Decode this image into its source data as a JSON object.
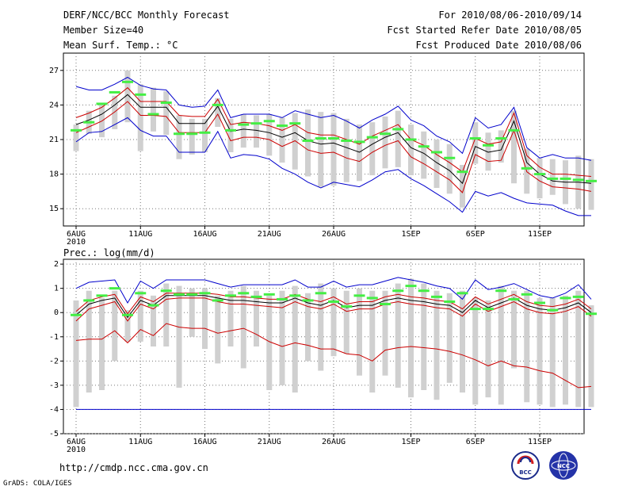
{
  "header": {
    "title": "DERF/NCC/BCC Monthly Forecast",
    "member_size": "Member Size=40",
    "variable": "Mean Surf. Temp.: °C",
    "period": "For 2010/08/06-2010/09/14",
    "fcst_started": "Fcst Started Refer Date 2010/08/05",
    "fcst_produced": "Fcst Produced Date 2010/08/06"
  },
  "footer": {
    "url": "http://cmdp.ncc.cma.gov.cn",
    "credit": "GrADS: COLA/IGES"
  },
  "logos": {
    "bcc": "BCC",
    "ncc": "NCC"
  },
  "colors": {
    "box": "#d0d0d0",
    "obs": "#44ee44",
    "mean": "#000000",
    "band": "#cc0000",
    "envelope": "#0000cc",
    "grid": "#777777"
  },
  "chart_data": [
    {
      "type": "line",
      "name": "temperature",
      "title": "Mean Surf. Temp.: °C",
      "x_tick_labels": [
        "6AUG",
        "11AUG",
        "16AUG",
        "21AUG",
        "26AUG",
        "1SEP",
        "6SEP",
        "11SEP"
      ],
      "x_tick_days": [
        0,
        5,
        10,
        15,
        20,
        26,
        31,
        36
      ],
      "year_label": "2010",
      "ylim": [
        13.5,
        28.5
      ],
      "y_ticks": [
        15,
        18,
        21,
        24,
        27
      ],
      "series": [
        {
          "name": "ensemble_mean",
          "values": [
            22.3,
            22.7,
            23.2,
            24.0,
            24.9,
            23.8,
            23.8,
            23.8,
            22.4,
            22.4,
            22.4,
            23.9,
            21.7,
            21.9,
            21.8,
            21.6,
            21.2,
            21.6,
            20.9,
            20.6,
            20.7,
            20.3,
            19.9,
            20.6,
            21.2,
            21.6,
            20.3,
            19.8,
            19.0,
            18.3,
            17.2,
            20.4,
            19.9,
            20.1,
            22.6,
            19.0,
            18.0,
            17.4,
            17.3,
            17.3,
            17.2
          ]
        },
        {
          "name": "upper_band",
          "values": [
            22.9,
            23.3,
            23.8,
            24.6,
            25.5,
            24.3,
            24.3,
            24.3,
            23.1,
            23.0,
            23.0,
            24.5,
            22.3,
            22.5,
            22.4,
            22.2,
            21.8,
            22.3,
            21.6,
            21.4,
            21.4,
            21.0,
            20.6,
            21.3,
            21.8,
            22.3,
            21.0,
            20.5,
            19.7,
            19.0,
            18.2,
            21.1,
            20.6,
            20.8,
            23.3,
            19.6,
            18.6,
            18.0,
            18.0,
            17.9,
            17.8
          ]
        },
        {
          "name": "lower_band",
          "values": [
            21.6,
            22.1,
            22.6,
            23.4,
            24.3,
            23.1,
            23.1,
            23.0,
            21.6,
            21.6,
            21.6,
            23.2,
            20.9,
            21.2,
            21.2,
            21.0,
            20.4,
            20.9,
            20.1,
            19.8,
            19.9,
            19.4,
            19.1,
            19.9,
            20.5,
            20.9,
            19.5,
            18.9,
            18.2,
            17.5,
            16.4,
            19.7,
            19.1,
            19.2,
            21.8,
            18.2,
            17.4,
            16.9,
            16.8,
            16.7,
            16.5
          ]
        },
        {
          "name": "ensemble_max",
          "values": [
            25.6,
            25.3,
            25.3,
            25.8,
            26.4,
            25.7,
            25.4,
            25.3,
            24.0,
            23.8,
            23.9,
            25.3,
            22.9,
            23.2,
            23.2,
            23.2,
            22.9,
            23.5,
            23.2,
            22.9,
            23.1,
            22.6,
            22.0,
            22.7,
            23.2,
            23.9,
            22.7,
            22.2,
            21.3,
            20.8,
            19.8,
            22.9,
            22.0,
            22.3,
            23.8,
            20.3,
            19.4,
            19.7,
            19.4,
            19.4,
            19.2
          ]
        },
        {
          "name": "ensemble_min",
          "values": [
            20.8,
            21.6,
            21.7,
            22.3,
            22.9,
            21.8,
            21.3,
            21.3,
            19.9,
            19.9,
            19.9,
            21.7,
            19.4,
            19.7,
            19.6,
            19.3,
            18.5,
            18.0,
            17.3,
            16.8,
            17.3,
            17.1,
            16.9,
            17.5,
            18.2,
            18.4,
            17.6,
            17.0,
            16.3,
            15.6,
            14.7,
            16.5,
            16.1,
            16.4,
            15.9,
            15.5,
            15.4,
            15.3,
            14.8,
            14.4,
            14.4
          ]
        },
        {
          "name": "observed_marker",
          "values": [
            21.8,
            22.5,
            24.1,
            25.1,
            26.0,
            24.9,
            23.2,
            24.2,
            21.5,
            21.5,
            21.6,
            24.0,
            21.8,
            22.3,
            22.4,
            22.6,
            22.2,
            22.4,
            20.9,
            21.1,
            21.1,
            20.9,
            20.8,
            21.2,
            21.5,
            21.9,
            21.0,
            20.4,
            19.9,
            19.4,
            18.2,
            21.1,
            20.5,
            21.1,
            21.8,
            18.5,
            18.0,
            17.6,
            17.6,
            17.5,
            17.4
          ]
        },
        {
          "name": "box_top",
          "values": [
            22.3,
            23.5,
            24.0,
            24.8,
            27.0,
            25.8,
            25.5,
            25.2,
            23.1,
            22.8,
            22.8,
            24.6,
            22.8,
            23.2,
            23.1,
            23.2,
            22.9,
            23.3,
            23.6,
            23.4,
            23.3,
            22.8,
            22.3,
            22.5,
            23.0,
            23.5,
            22.3,
            21.7,
            21.0,
            20.6,
            18.8,
            22.5,
            21.6,
            21.8,
            23.5,
            20.2,
            19.4,
            19.3,
            19.2,
            19.6,
            19.3
          ]
        },
        {
          "name": "box_bottom",
          "values": [
            20.0,
            21.5,
            21.2,
            21.9,
            22.5,
            20.0,
            21.7,
            21.4,
            19.3,
            19.7,
            19.9,
            22.1,
            19.9,
            20.3,
            20.3,
            19.6,
            19.0,
            18.4,
            17.8,
            16.9,
            17.0,
            17.3,
            17.4,
            17.9,
            18.5,
            18.6,
            17.9,
            17.6,
            16.8,
            16.3,
            15.1,
            18.9,
            18.3,
            19.0,
            17.2,
            16.3,
            15.9,
            16.2,
            15.4,
            15.0,
            14.9
          ]
        }
      ]
    },
    {
      "type": "line",
      "name": "precipitation",
      "title": "Prec.: log(mm/d)",
      "x_tick_labels": [
        "6AUG",
        "11AUG",
        "16AUG",
        "21AUG",
        "26AUG",
        "1SEP",
        "6SEP",
        "11SEP"
      ],
      "x_tick_days": [
        0,
        5,
        10,
        15,
        20,
        26,
        31,
        36
      ],
      "year_label": "2010",
      "ylim": [
        -5,
        2.2
      ],
      "y_ticks": [
        -5,
        -4,
        -3,
        -2,
        -1,
        0,
        1,
        2
      ],
      "series": [
        {
          "name": "ensemble_mean",
          "values": [
            -0.1,
            0.35,
            0.5,
            0.6,
            -0.2,
            0.5,
            0.3,
            0.7,
            0.7,
            0.7,
            0.7,
            0.6,
            0.5,
            0.5,
            0.45,
            0.4,
            0.4,
            0.6,
            0.4,
            0.3,
            0.5,
            0.2,
            0.3,
            0.3,
            0.5,
            0.6,
            0.5,
            0.45,
            0.35,
            0.3,
            0.0,
            0.5,
            0.2,
            0.4,
            0.6,
            0.3,
            0.15,
            0.1,
            0.2,
            0.4,
            0.0
          ]
        },
        {
          "name": "upper_band",
          "values": [
            0.05,
            0.5,
            0.65,
            0.75,
            -0.05,
            0.65,
            0.45,
            0.8,
            0.8,
            0.8,
            0.8,
            0.75,
            0.65,
            0.65,
            0.6,
            0.55,
            0.55,
            0.75,
            0.55,
            0.45,
            0.65,
            0.35,
            0.45,
            0.45,
            0.65,
            0.75,
            0.65,
            0.6,
            0.5,
            0.45,
            0.15,
            0.65,
            0.35,
            0.55,
            0.75,
            0.45,
            0.3,
            0.25,
            0.35,
            0.55,
            0.15
          ]
        },
        {
          "name": "lower_band",
          "values": [
            -0.35,
            0.15,
            0.3,
            0.45,
            -0.35,
            0.35,
            0.15,
            0.55,
            0.6,
            0.6,
            0.6,
            0.45,
            0.35,
            0.35,
            0.3,
            0.25,
            0.2,
            0.45,
            0.25,
            0.15,
            0.35,
            0.05,
            0.15,
            0.15,
            0.35,
            0.45,
            0.35,
            0.3,
            0.2,
            0.15,
            -0.15,
            0.35,
            0.05,
            0.25,
            0.45,
            0.15,
            0.0,
            -0.05,
            0.05,
            0.25,
            -0.15
          ]
        },
        {
          "name": "ensemble_max",
          "values": [
            1.0,
            1.25,
            1.3,
            1.35,
            0.4,
            1.3,
            1.0,
            1.35,
            1.35,
            1.35,
            1.35,
            1.2,
            1.05,
            1.15,
            1.15,
            1.15,
            1.15,
            1.35,
            1.05,
            1.05,
            1.3,
            1.05,
            1.15,
            1.15,
            1.3,
            1.45,
            1.35,
            1.25,
            1.1,
            1.0,
            0.55,
            1.35,
            0.95,
            1.05,
            1.2,
            0.95,
            0.7,
            0.6,
            0.8,
            1.15,
            0.55
          ]
        },
        {
          "name": "lower_red",
          "values": [
            -1.15,
            -1.1,
            -1.1,
            -0.75,
            -1.25,
            -0.7,
            -0.95,
            -0.45,
            -0.6,
            -0.65,
            -0.65,
            -0.85,
            -0.75,
            -0.65,
            -0.9,
            -1.2,
            -1.4,
            -1.25,
            -1.35,
            -1.5,
            -1.5,
            -1.7,
            -1.75,
            -2.0,
            -1.55,
            -1.45,
            -1.4,
            -1.45,
            -1.5,
            -1.6,
            -1.75,
            -1.95,
            -2.2,
            -2.0,
            -2.2,
            -2.25,
            -2.4,
            -2.5,
            -2.8,
            -3.1,
            -3.05
          ]
        },
        {
          "name": "ensemble_min",
          "values": [
            -4.0,
            -4.0,
            -4.0,
            -4.0,
            -4.0,
            -4.0,
            -4.0,
            -4.0,
            -4.0,
            -4.0,
            -4.0,
            -4.0,
            -4.0,
            -4.0,
            -4.0,
            -4.0,
            -4.0,
            -4.0,
            -4.0,
            -4.0,
            -4.0,
            -4.0,
            -4.0,
            -4.0,
            -4.0,
            -4.0,
            -4.0,
            -4.0,
            -4.0,
            -4.0,
            -4.0,
            -4.0,
            -4.0,
            -4.0,
            -4.0,
            -4.0,
            -4.0,
            -4.0,
            -4.0,
            -4.0,
            -4.0
          ]
        },
        {
          "name": "observed_marker",
          "values": [
            -0.1,
            0.5,
            0.7,
            1.0,
            -0.1,
            0.8,
            0.3,
            0.9,
            0.75,
            0.75,
            0.8,
            0.5,
            0.7,
            0.8,
            0.65,
            0.75,
            0.55,
            0.7,
            0.5,
            0.8,
            0.45,
            0.25,
            0.7,
            0.6,
            0.35,
            0.9,
            1.1,
            0.9,
            0.65,
            0.45,
            0.8,
            0.15,
            0.15,
            0.9,
            0.55,
            0.75,
            0.4,
            0.1,
            0.6,
            0.65,
            -0.05
          ]
        },
        {
          "name": "box_top",
          "values": [
            0.5,
            0.9,
            0.6,
            0.9,
            0.1,
            0.9,
            0.7,
            1.2,
            1.1,
            1.0,
            1.0,
            0.7,
            0.9,
            1.1,
            0.9,
            0.7,
            0.9,
            1.1,
            0.8,
            1.2,
            1.0,
            0.9,
            1.0,
            0.9,
            0.9,
            1.2,
            1.4,
            1.2,
            0.9,
            0.8,
            0.9,
            0.6,
            0.5,
            1.1,
            0.9,
            0.9,
            0.6,
            0.6,
            0.7,
            0.9,
            0.3
          ]
        },
        {
          "name": "box_bottom",
          "values": [
            -3.9,
            -3.3,
            -3.2,
            -2.0,
            -1.2,
            -1.2,
            -1.4,
            -1.4,
            -3.1,
            -1.0,
            -1.5,
            -2.1,
            -1.4,
            -2.3,
            -1.4,
            -3.2,
            -3.0,
            -3.3,
            -2.0,
            -2.4,
            -1.8,
            -1.7,
            -2.6,
            -3.3,
            -2.6,
            -3.1,
            -3.5,
            -3.2,
            -3.6,
            -2.9,
            -3.3,
            -3.8,
            -3.5,
            -3.8,
            -2.3,
            -3.7,
            -3.8,
            -3.9,
            -3.8,
            -3.9,
            -3.9
          ]
        }
      ]
    }
  ]
}
